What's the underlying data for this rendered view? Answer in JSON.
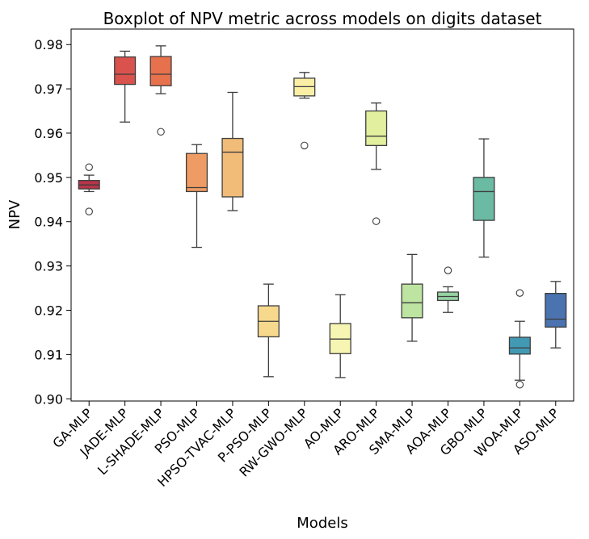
{
  "chart_data": {
    "type": "boxplot",
    "title": "Boxplot of NPV metric across models on digits dataset",
    "xlabel": "Models",
    "ylabel": "NPV",
    "ylim": [
      0.8995,
      0.9835
    ],
    "yticks": [
      0.9,
      0.91,
      0.92,
      0.93,
      0.94,
      0.95,
      0.96,
      0.97,
      0.98
    ],
    "ytick_labels": [
      "0.90",
      "0.91",
      "0.92",
      "0.93",
      "0.94",
      "0.95",
      "0.96",
      "0.97",
      "0.98"
    ],
    "grid": false,
    "categories": [
      "GA-MLP",
      "JADE-MLP",
      "L-SHADE-MLP",
      "PSO-MLP",
      "HPSO-TVAC-MLP",
      "P-PSO-MLP",
      "RW-GWO-MLP",
      "AO-MLP",
      "ARO-MLP",
      "SMA-MLP",
      "AOA-MLP",
      "GBO-MLP",
      "WOA-MLP",
      "ASO-MLP"
    ],
    "boxes": [
      {
        "model": "GA-MLP",
        "min": 0.9468,
        "q1": 0.9474,
        "median": 0.9483,
        "q3": 0.9493,
        "max": 0.9505,
        "fliers": [
          0.9523,
          0.9423
        ],
        "color": "#b8344a"
      },
      {
        "model": "JADE-MLP",
        "min": 0.9625,
        "q1": 0.971,
        "median": 0.9733,
        "q3": 0.9772,
        "max": 0.9785,
        "fliers": [],
        "color": "#d9524d"
      },
      {
        "model": "L-SHADE-MLP",
        "min": 0.9689,
        "q1": 0.9707,
        "median": 0.9733,
        "q3": 0.9773,
        "max": 0.9797,
        "fliers": [
          0.9603
        ],
        "color": "#e8714d"
      },
      {
        "model": "PSO-MLP",
        "min": 0.9342,
        "q1": 0.9468,
        "median": 0.9477,
        "q3": 0.9554,
        "max": 0.9574,
        "fliers": [],
        "color": "#ef9c64"
      },
      {
        "model": "HPSO-TVAC-MLP",
        "min": 0.9425,
        "q1": 0.9456,
        "median": 0.9557,
        "q3": 0.9588,
        "max": 0.9692,
        "fliers": [],
        "color": "#f0bc78"
      },
      {
        "model": "P-PSO-MLP",
        "min": 0.905,
        "q1": 0.914,
        "median": 0.9175,
        "q3": 0.921,
        "max": 0.9259,
        "fliers": [],
        "color": "#f7d98d"
      },
      {
        "model": "RW-GWO-MLP",
        "min": 0.9679,
        "q1": 0.9684,
        "median": 0.9705,
        "q3": 0.9724,
        "max": 0.9737,
        "fliers": [
          0.9572
        ],
        "color": "#fbefa6"
      },
      {
        "model": "AO-MLP",
        "min": 0.9048,
        "q1": 0.9102,
        "median": 0.9135,
        "q3": 0.917,
        "max": 0.9235,
        "fliers": [],
        "color": "#f6f5b2"
      },
      {
        "model": "ARO-MLP",
        "min": 0.9518,
        "q1": 0.9572,
        "median": 0.9593,
        "q3": 0.965,
        "max": 0.9668,
        "fliers": [
          0.9401
        ],
        "color": "#e2ef9e"
      },
      {
        "model": "SMA-MLP",
        "min": 0.913,
        "q1": 0.9183,
        "median": 0.9217,
        "q3": 0.9259,
        "max": 0.9326,
        "fliers": [],
        "color": "#bde4a0"
      },
      {
        "model": "AOA-MLP",
        "min": 0.9195,
        "q1": 0.9222,
        "median": 0.9231,
        "q3": 0.9241,
        "max": 0.9253,
        "fliers": [
          0.929
        ],
        "color": "#95d2a3"
      },
      {
        "model": "GBO-MLP",
        "min": 0.932,
        "q1": 0.9403,
        "median": 0.9468,
        "q3": 0.95,
        "max": 0.9587,
        "fliers": [],
        "color": "#6bbba4"
      },
      {
        "model": "WOA-MLP",
        "min": 0.9042,
        "q1": 0.9101,
        "median": 0.9115,
        "q3": 0.9139,
        "max": 0.9175,
        "fliers": [
          0.9239,
          0.9032
        ],
        "color": "#4299b4"
      },
      {
        "model": "ASO-MLP",
        "min": 0.9115,
        "q1": 0.9162,
        "median": 0.918,
        "q3": 0.9238,
        "max": 0.9265,
        "fliers": [],
        "color": "#4a73b0"
      }
    ]
  }
}
